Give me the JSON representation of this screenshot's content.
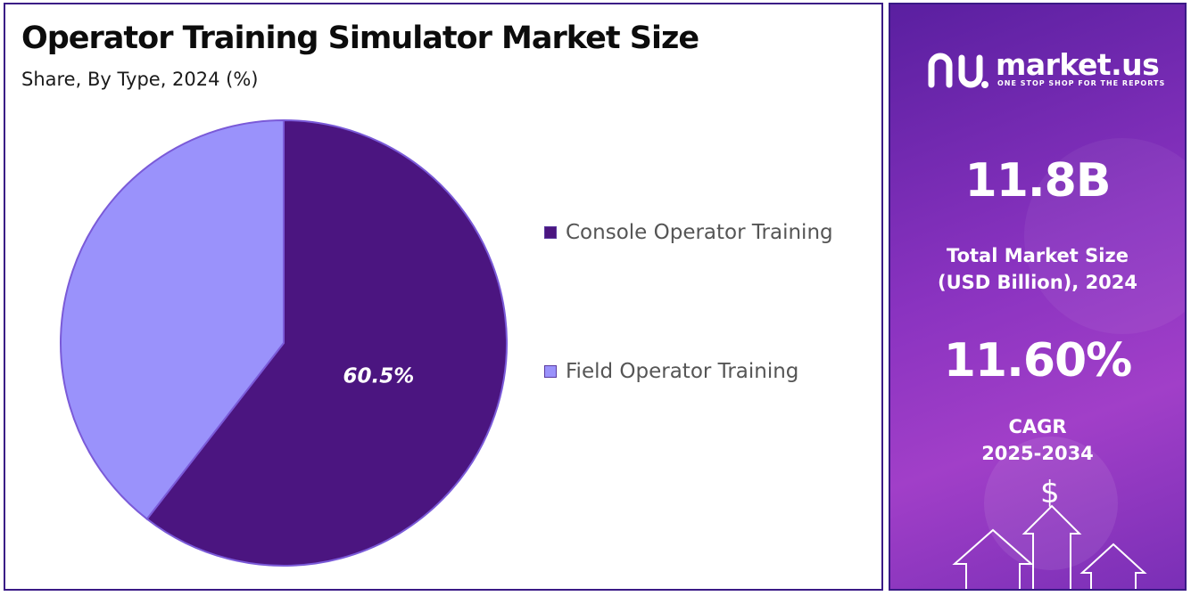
{
  "header": {
    "title": "Operator Training Simulator Market Size",
    "subtitle": "Share, By Type, 2024 (%)"
  },
  "chart_data": {
    "type": "pie",
    "title": "Operator Training Simulator Market Size",
    "subtitle": "Share, By Type, 2024 (%)",
    "categories": [
      "Console Operator Training",
      "Field Operator Training"
    ],
    "values": [
      60.5,
      39.5
    ],
    "data_labels": [
      "60.5%",
      ""
    ],
    "colors": [
      "#4b1580",
      "#9a92fb"
    ],
    "legend_position": "right"
  },
  "sidebar": {
    "brand_name": "market.us",
    "brand_tagline": "ONE STOP SHOP FOR THE REPORTS",
    "logo_icon": "market-us-logo-icon",
    "market_size_value": "11.8B",
    "market_size_label_line1": "Total Market Size",
    "market_size_label_line2": "(USD Billion), 2024",
    "cagr_value": "11.60%",
    "cagr_label_line1": "CAGR",
    "cagr_label_line2": "2025-2034",
    "dollar_symbol": "$"
  }
}
